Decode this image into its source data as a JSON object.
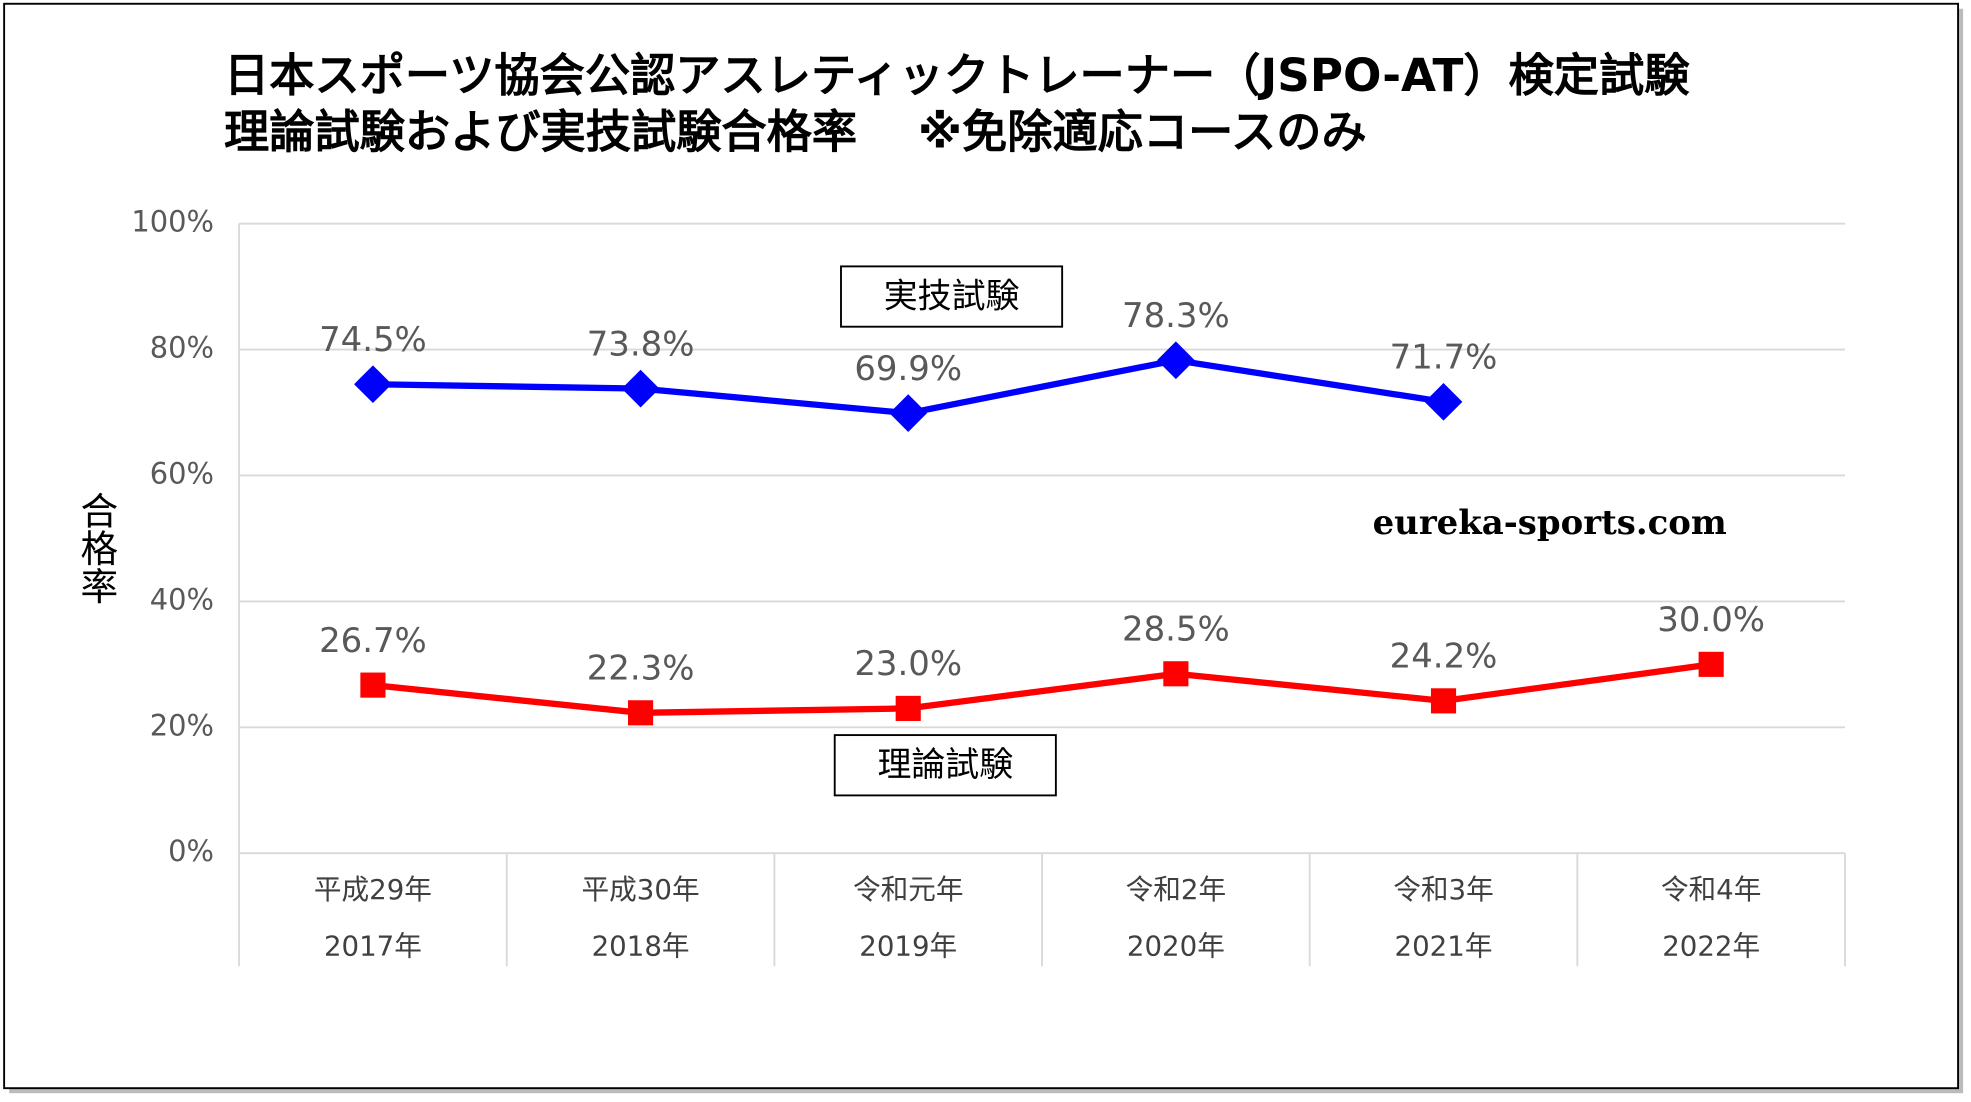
{
  "chart_data": {
    "type": "line",
    "title": "日本スポーツ協会公認アスレティックトレーナー（JSPO-AT）検定試験",
    "subtitle": "理論試験および実技試験合格率　 ※免除適応コースのみ",
    "y_label": "合格率",
    "annotation": "eureka-sports.com",
    "categories": [
      [
        "平成29年",
        "2017年"
      ],
      [
        "平成30年",
        "2018年"
      ],
      [
        "令和元年",
        "2019年"
      ],
      [
        "令和2年",
        "2020年"
      ],
      [
        "令和3年",
        "2021年"
      ],
      [
        "令和4年",
        "2022年"
      ]
    ],
    "ylim": [
      0,
      100
    ],
    "yticks": [
      {
        "value": 0,
        "label": "0%"
      },
      {
        "value": 20,
        "label": "20%"
      },
      {
        "value": 40,
        "label": "40%"
      },
      {
        "value": 60,
        "label": "60%"
      },
      {
        "value": 80,
        "label": "80%"
      },
      {
        "value": 100,
        "label": "100%"
      }
    ],
    "grid": true,
    "series": [
      {
        "name": "実技試験",
        "color": "#0000ff",
        "marker": "diamond",
        "values": [
          74.5,
          73.8,
          69.9,
          78.3,
          71.7,
          null
        ],
        "value_labels": [
          "74.5%",
          "73.8%",
          "69.9%",
          "78.3%",
          "71.7%",
          null
        ]
      },
      {
        "name": "理論試験",
        "color": "#ff0000",
        "marker": "square",
        "values": [
          26.7,
          22.3,
          23.0,
          28.5,
          24.2,
          30.0
        ],
        "value_labels": [
          "26.7%",
          "22.3%",
          "23.0%",
          "28.5%",
          "24.2%",
          "30.0%"
        ]
      }
    ]
  }
}
